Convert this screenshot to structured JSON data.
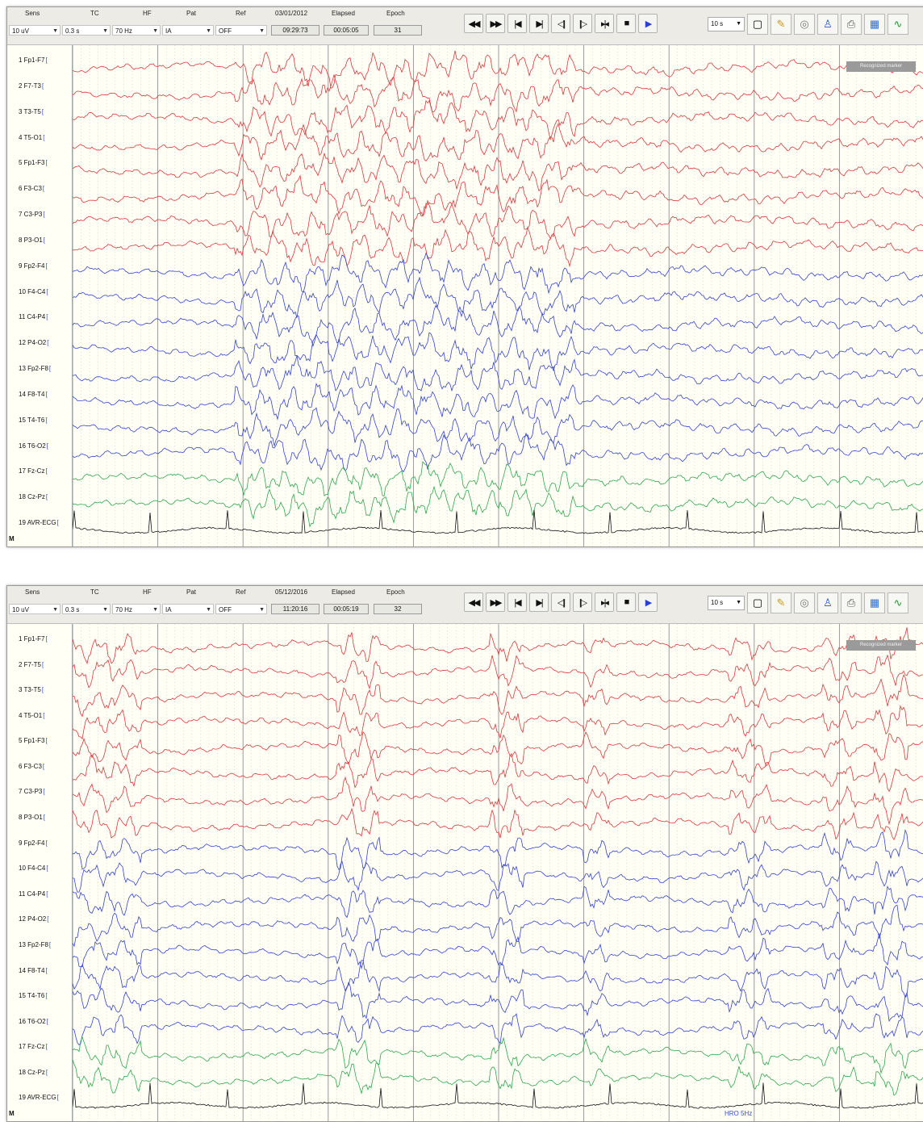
{
  "colors": {
    "background": "#fffff6",
    "grid": "#b9b9b9",
    "group1": "#e0373b",
    "group2": "#3443d6",
    "group3": "#2ea84c",
    "ecg": "#141414"
  },
  "icons": {
    "transport": [
      "rewind-icon",
      "fast-forward-icon",
      "skip-start-icon",
      "skip-end-icon",
      "step-back-icon",
      "step-forward-icon",
      "fit-icon",
      "stop-icon",
      "play-icon"
    ],
    "tools": [
      "new-page-icon",
      "edit-icon",
      "settings-disc-icon",
      "patient-icon",
      "print-icon",
      "montage-icon",
      "spectrum-icon"
    ]
  },
  "panels": [
    {
      "controls": {
        "sens_label": "Sens",
        "tc_label": "TC",
        "hf_label": "HF",
        "pat_label": "Pat",
        "ref_label": "Ref",
        "date": "03/01/2012",
        "elapsed_label": "Elapsed",
        "epoch_label": "Epoch",
        "sens_value": "10 uV",
        "tc_value": "0.3 s",
        "hf_value": "70 Hz",
        "pat_value": "IA",
        "ref_value": "OFF",
        "time": "09:29:73",
        "elapsed": "00:05:05",
        "epoch": "31"
      },
      "zoom": "10 s",
      "overlay_button": "Recognized marker",
      "channels": [
        "Fp1-F7",
        "F7-T3",
        "T3-T5",
        "T5-O1",
        "Fp1-F3",
        "F3-C3",
        "C3-P3",
        "P3-O1",
        "Fp2-F4",
        "F4-C4",
        "C4-P4",
        "P4-O2",
        "Fp2-F8",
        "F8-T4",
        "T4-T6",
        "T6-O2",
        "Fz-Cz",
        "Cz-Pz",
        "AVR-ECG"
      ],
      "marker": "M"
    },
    {
      "controls": {
        "sens_label": "Sens",
        "tc_label": "TC",
        "hf_label": "HF",
        "pat_label": "Pat",
        "ref_label": "Ref",
        "date": "05/12/2016",
        "elapsed_label": "Elapsed",
        "epoch_label": "Epoch",
        "sens_value": "10 uV",
        "tc_value": "0.3 s",
        "hf_value": "70 Hz",
        "pat_value": "IA",
        "ref_value": "OFF",
        "time": "11:20:16",
        "elapsed": "00:05:19",
        "epoch": "32"
      },
      "zoom": "10 s",
      "overlay_button": "Recognized marker",
      "channels": [
        "Fp1-F7",
        "F7-T5",
        "T3-T5",
        "T5-O1",
        "Fp1-F3",
        "F3-C3",
        "C3-P3",
        "P3-O1",
        "Fp2-F4",
        "F4-C4",
        "C4-P4",
        "P4-O2",
        "Fp2-F8",
        "F8-T4",
        "T4-T6",
        "T6-O2",
        "Fz-Cz",
        "Cz-Pz",
        "AVR-ECG"
      ],
      "marker": "M",
      "annotation": "HRO 5Hz"
    }
  ]
}
